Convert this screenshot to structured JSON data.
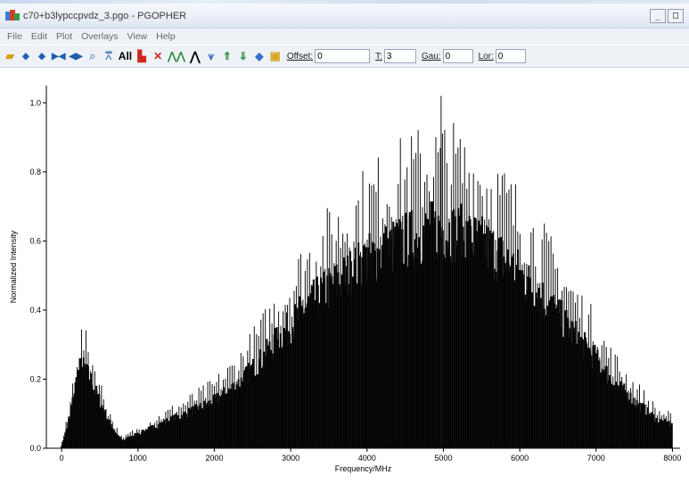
{
  "window": {
    "title": "c70+b3lypccpvdz_3.pgo - PGOPHER",
    "minimize_label": "_",
    "restore_label": "□"
  },
  "menu": {
    "items": [
      "File",
      "Edit",
      "Plot",
      "Overlays",
      "View",
      "Help"
    ]
  },
  "toolbar": {
    "all_label": "All",
    "offset_label": "Offset:",
    "offset_value": "0",
    "t_label": "T:",
    "t_value": "3",
    "gau_label": "Gau:",
    "gau_value": "0",
    "lor_label": "Lor:",
    "lor_value": "0",
    "icons": [
      "open-folder-icon",
      "left-arrow-icon",
      "right-arrow-icon",
      "fit-width-icon",
      "center-icon",
      "zoom-icon",
      "fit-peaks-icon",
      "bar-chart-icon",
      "cross-icon",
      "overlay-icon",
      "peak-icon",
      "split-peak-icon",
      "up-arrow-icon",
      "down-arrow-icon",
      "diamond-icon",
      "clipboard-icon"
    ]
  },
  "chart_data": {
    "type": "bar",
    "xlabel": "Frequency/MHz",
    "ylabel": "Normalized Intensity",
    "xlim": [
      -200,
      8100
    ],
    "ylim": [
      0,
      1.05
    ],
    "xticks": [
      0,
      1000,
      2000,
      3000,
      4000,
      5000,
      6000,
      7000,
      8000
    ],
    "yticks": [
      0.0,
      0.2,
      0.4,
      0.6,
      0.8,
      1.0
    ],
    "ytick_labels": [
      "0.0",
      "0.2",
      "0.4",
      "0.6",
      "0.8",
      "1.0"
    ],
    "grid": false,
    "series": [
      {
        "envelope_x": [
          0,
          100,
          200,
          250,
          300,
          400,
          500,
          600,
          700,
          800,
          900,
          1000,
          1200,
          1500,
          1800,
          2000,
          2300,
          2600,
          2800,
          3000,
          3200,
          3500,
          3800,
          4000,
          4300,
          4500,
          4800,
          5000,
          5300,
          5600,
          5800,
          6000,
          6300,
          6600,
          6800,
          7000,
          7200,
          7500,
          7800,
          8000
        ],
        "envelope_y": [
          0.01,
          0.12,
          0.3,
          0.35,
          0.34,
          0.28,
          0.2,
          0.13,
          0.07,
          0.03,
          0.05,
          0.06,
          0.09,
          0.13,
          0.17,
          0.2,
          0.27,
          0.37,
          0.45,
          0.52,
          0.6,
          0.68,
          0.75,
          0.8,
          0.85,
          0.88,
          0.92,
          0.93,
          0.9,
          0.85,
          0.8,
          0.74,
          0.64,
          0.53,
          0.45,
          0.38,
          0.29,
          0.2,
          0.12,
          0.1
        ],
        "fill_fraction": 0.68,
        "peak_max": 1.02,
        "peak_max_x": 4970
      }
    ]
  }
}
